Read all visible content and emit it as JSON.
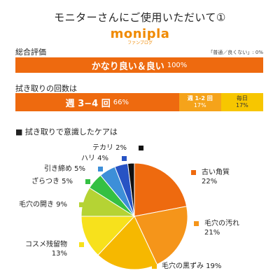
{
  "header": {
    "title": "モニターさんにご使用いただいて①",
    "logo": "monipla",
    "logo_sub": "ファンブログ"
  },
  "overall": {
    "label": "総合評価",
    "note": "「普通／良くない」: 0%",
    "bar": {
      "label": "かなり良い＆良い",
      "pct": "100%",
      "value": 100,
      "color": "#ee6a0f"
    }
  },
  "frequency": {
    "label": "拭き取りの回数は",
    "segments": [
      {
        "label": "週 3−4 回",
        "pct": "66%",
        "value": 66,
        "color": "#ee6a0f",
        "text_color": "#ffffff"
      },
      {
        "label": "週 1-2 回",
        "pct": "17%",
        "value": 17,
        "color": "#f5a31a",
        "text_color": "#ffffff"
      },
      {
        "label": "毎日",
        "pct": "17%",
        "value": 17,
        "color": "#f7c600",
        "text_color": "#333333"
      }
    ]
  },
  "care": {
    "title": "■ 拭き取りで意識したケアは"
  },
  "chart_data": {
    "type": "pie",
    "title": "■ 拭き取りで意識したケアは",
    "slices": [
      {
        "name": "古い角質",
        "pct_label": "22%",
        "value": 22,
        "color": "#ee6a0f"
      },
      {
        "name": "毛穴の汚れ",
        "pct_label": "21%",
        "value": 21,
        "color": "#f5951a"
      },
      {
        "name": "毛穴の黒ずみ",
        "pct_label": "19%",
        "value": 19,
        "color": "#f6b800"
      },
      {
        "name": "コスメ残留物",
        "pct_label": "13%",
        "value": 13,
        "color": "#f7e11c"
      },
      {
        "name": "毛穴の開き",
        "pct_label": "9%",
        "value": 9,
        "color": "#b5d334"
      },
      {
        "name": "ざらつき",
        "pct_label": "5%",
        "value": 5,
        "color": "#34c042"
      },
      {
        "name": "引き締め",
        "pct_label": "5%",
        "value": 5,
        "color": "#3d8fd8"
      },
      {
        "name": "ハリ",
        "pct_label": "4%",
        "value": 4,
        "color": "#2753c4"
      },
      {
        "name": "テカリ",
        "pct_label": "2%",
        "value": 2,
        "color": "#111111"
      }
    ]
  }
}
